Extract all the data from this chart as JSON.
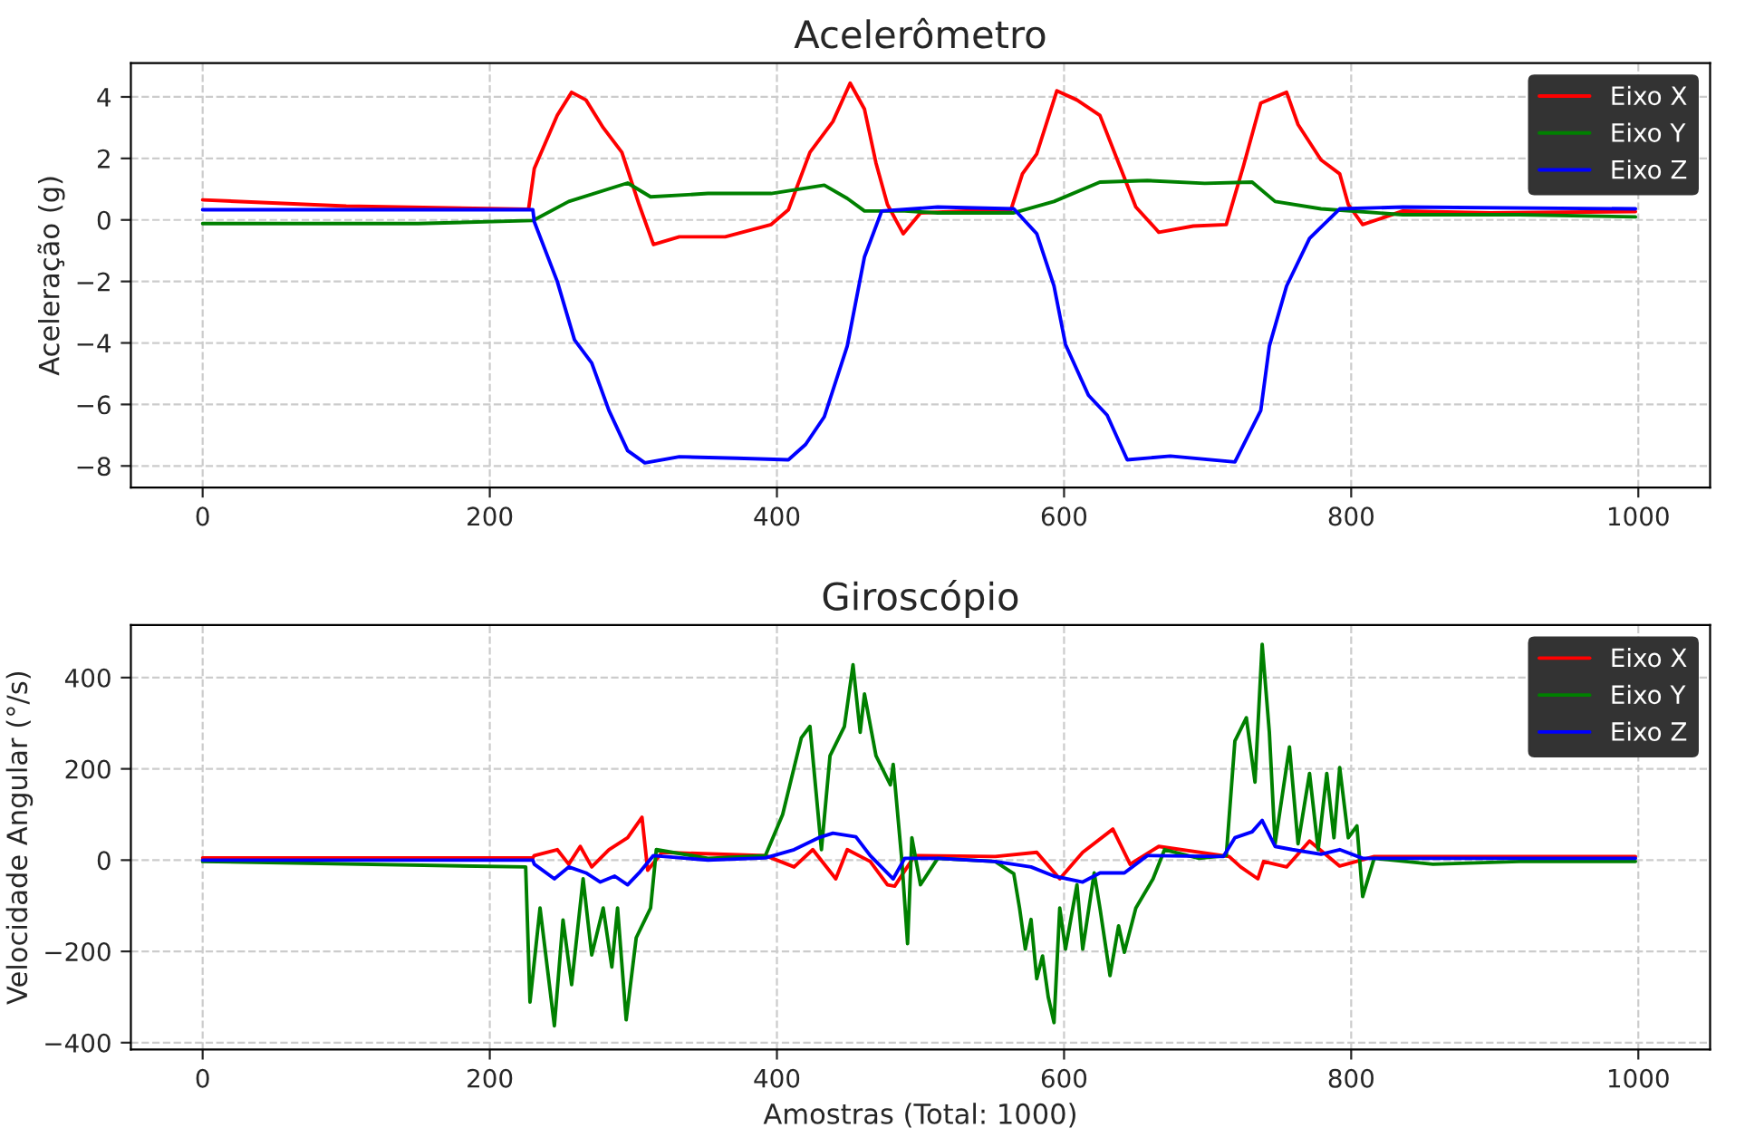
{
  "chart_data": [
    {
      "type": "line",
      "title": "Acelerômetro",
      "ylabel": "Aceleração (g)",
      "xlim": [
        -50,
        1050
      ],
      "ylim": [
        -8.7,
        5.1
      ],
      "xticks": [
        0,
        200,
        400,
        600,
        800,
        1000
      ],
      "yticks": [
        {
          "value": -8,
          "label": "−8"
        },
        {
          "value": -6,
          "label": "−6"
        },
        {
          "value": -4,
          "label": "−4"
        },
        {
          "value": -2,
          "label": "−2"
        },
        0,
        2,
        4
      ],
      "grid": true,
      "legend": "top right",
      "line_style": "solid",
      "series": [
        {
          "name": "Eixo X",
          "color": "#ff0000",
          "x": [
            0,
            100,
            227,
            231,
            247,
            257,
            267,
            279,
            292,
            304,
            314,
            332,
            364,
            396,
            408,
            423,
            439,
            451,
            461,
            469,
            477,
            488,
            500,
            532,
            563,
            571,
            581,
            595,
            609,
            625,
            638,
            650,
            666,
            690,
            713,
            725,
            737,
            755,
            763,
            779,
            792,
            798,
            808,
            836,
            897,
            998
          ],
          "values": [
            0.65,
            0.45,
            0.35,
            1.67,
            3.4,
            4.15,
            3.9,
            3.0,
            2.2,
            0.5,
            -0.8,
            -0.55,
            -0.55,
            -0.15,
            0.33,
            2.2,
            3.2,
            4.45,
            3.6,
            1.85,
            0.5,
            -0.45,
            0.23,
            0.29,
            0.33,
            1.5,
            2.15,
            4.2,
            3.9,
            3.4,
            1.85,
            0.42,
            -0.4,
            -0.2,
            -0.15,
            1.76,
            3.8,
            4.15,
            3.1,
            1.95,
            1.5,
            0.5,
            -0.15,
            0.29,
            0.23,
            0.27
          ]
        },
        {
          "name": "Eixo Y",
          "color": "#008000",
          "x": [
            0,
            150,
            230,
            255,
            296,
            312,
            352,
            396,
            433,
            449,
            461,
            489,
            512,
            565,
            593,
            625,
            658,
            698,
            731,
            747,
            779,
            836,
            917,
            998
          ],
          "values": [
            -0.12,
            -0.12,
            -0.02,
            0.6,
            1.2,
            0.75,
            0.86,
            0.86,
            1.13,
            0.7,
            0.29,
            0.29,
            0.23,
            0.23,
            0.6,
            1.23,
            1.28,
            1.19,
            1.23,
            0.6,
            0.36,
            0.17,
            0.17,
            0.1
          ]
        },
        {
          "name": "Eixo Z",
          "color": "#0000ff",
          "x": [
            0,
            230,
            231,
            247,
            259,
            271,
            283,
            296,
            308,
            332,
            372,
            408,
            420,
            433,
            449,
            461,
            473,
            512,
            565,
            581,
            593,
            601,
            617,
            630,
            644,
            674,
            719,
            737,
            743,
            755,
            771,
            792,
            836,
            998
          ],
          "values": [
            0.33,
            0.33,
            -0.06,
            -2.0,
            -3.9,
            -4.65,
            -6.2,
            -7.5,
            -7.9,
            -7.7,
            -7.75,
            -7.8,
            -7.3,
            -6.4,
            -4.1,
            -1.2,
            0.29,
            0.42,
            0.36,
            -0.45,
            -2.15,
            -4.05,
            -5.7,
            -6.35,
            -7.8,
            -7.68,
            -7.87,
            -6.2,
            -4.1,
            -2.15,
            -0.6,
            0.36,
            0.42,
            0.36
          ]
        }
      ]
    },
    {
      "type": "line",
      "title": "Giroscópio",
      "xlabel": "Amostras (Total: 1000)",
      "ylabel": "Velocidade Angular (°/s)",
      "xlim": [
        -50,
        1050
      ],
      "ylim": [
        -415,
        515
      ],
      "xticks": [
        0,
        200,
        400,
        600,
        800,
        1000
      ],
      "yticks": [
        {
          "value": -400,
          "label": "−400"
        },
        {
          "value": -200,
          "label": "−200"
        },
        0,
        200,
        400
      ],
      "grid": true,
      "legend": "top right",
      "line_style": "solid",
      "series": [
        {
          "name": "Eixo X",
          "color": "#ff0000",
          "x": [
            0,
            230,
            231,
            247,
            255,
            263,
            271,
            283,
            296,
            306,
            310,
            320,
            392,
            412,
            425,
            441,
            449,
            465,
            477,
            482,
            496,
            552,
            581,
            597,
            613,
            634,
            646,
            666,
            715,
            723,
            735,
            739,
            755,
            771,
            792,
            816,
            998
          ],
          "values": [
            5,
            5,
            10,
            23,
            -9,
            30,
            -15,
            23,
            49,
            94,
            -22,
            17,
            10,
            -15,
            23,
            -41,
            23,
            -3,
            -54,
            -57,
            10,
            8,
            17,
            -41,
            17,
            68,
            -9,
            30,
            8,
            -15,
            -41,
            -3,
            -15,
            42,
            -13,
            8,
            8
          ]
        },
        {
          "name": "Eixo Y",
          "color": "#008000",
          "x": [
            0,
            225,
            228,
            235,
            245,
            251,
            257,
            265,
            271,
            279,
            285,
            289,
            295,
            302,
            312,
            316,
            352,
            392,
            404,
            417,
            423,
            431,
            437,
            447,
            453,
            458,
            461,
            469,
            479,
            481,
            487,
            491,
            494,
            500,
            512,
            552,
            565,
            569,
            573,
            577,
            581,
            585,
            589,
            593,
            597,
            601,
            609,
            613,
            621,
            625,
            632,
            638,
            642,
            650,
            662,
            670,
            694,
            713,
            719,
            727,
            733,
            738,
            743,
            747,
            757,
            763,
            771,
            777,
            783,
            788,
            792,
            798,
            804,
            808,
            816,
            857,
            917,
            998
          ],
          "values": [
            -3,
            -15,
            -311,
            -105,
            -363,
            -131,
            -273,
            -41,
            -208,
            -105,
            -234,
            -105,
            -350,
            -170,
            -105,
            23,
            4,
            10,
            100,
            268,
            293,
            23,
            229,
            293,
            428,
            280,
            364,
            229,
            165,
            210,
            0,
            -183,
            49,
            -54,
            4,
            -3,
            -30,
            -105,
            -195,
            -130,
            -260,
            -210,
            -300,
            -356,
            -105,
            -195,
            -54,
            -195,
            -28,
            -105,
            -253,
            -144,
            -202,
            -105,
            -41,
            23,
            4,
            10,
            261,
            312,
            171,
            473,
            280,
            36,
            248,
            36,
            190,
            23,
            190,
            49,
            203,
            49,
            75,
            -80,
            4,
            -9,
            -3,
            -3
          ]
        },
        {
          "name": "Eixo Z",
          "color": "#0000ff",
          "x": [
            0,
            230,
            231,
            245,
            255,
            267,
            277,
            287,
            296,
            304,
            314,
            352,
            392,
            412,
            429,
            439,
            455,
            465,
            481,
            489,
            512,
            552,
            577,
            593,
            613,
            625,
            642,
            658,
            711,
            719,
            731,
            738,
            747,
            759,
            779,
            792,
            808,
            998
          ],
          "values": [
            0,
            0,
            -9,
            -41,
            -15,
            -28,
            -48,
            -35,
            -54,
            -28,
            10,
            0,
            5,
            23,
            49,
            59,
            51,
            10,
            -41,
            4,
            4,
            -3,
            -15,
            -35,
            -48,
            -28,
            -28,
            10,
            8,
            49,
            62,
            87,
            30,
            23,
            13,
            23,
            4,
            4
          ]
        }
      ]
    }
  ]
}
